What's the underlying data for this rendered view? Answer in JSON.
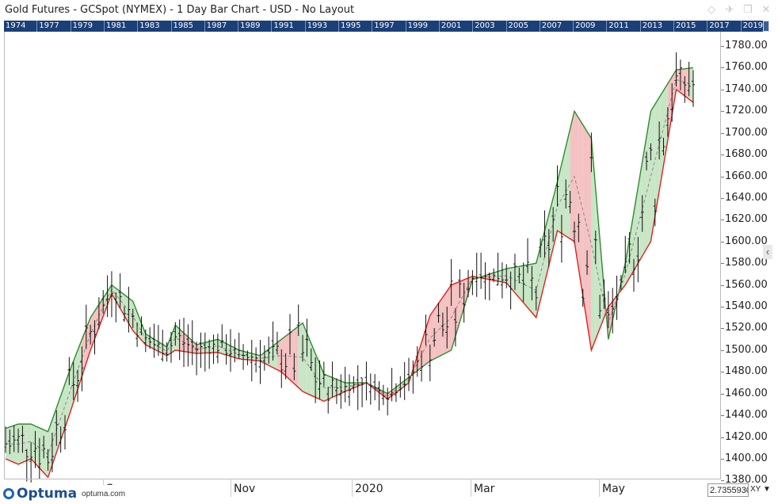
{
  "window": {
    "title": "Gold Futures - GCSpot (NYMEX) - 1 Day Bar Chart - USD - No Layout",
    "icons": [
      "diamond-icon",
      "pin-icon",
      "restore-icon",
      "close-icon"
    ]
  },
  "timeline": {
    "years": [
      "1974",
      "1977",
      "1979",
      "1981",
      "1983",
      "1985",
      "1987",
      "1989",
      "1991",
      "1993",
      "1995",
      "1997",
      "1999",
      "2001",
      "2003",
      "2005",
      "2007",
      "2009",
      "2011",
      "2013",
      "2015",
      "2017",
      "2019"
    ]
  },
  "branding": {
    "name": "Optuma",
    "url": "optuma.com"
  },
  "cursor_readout": {
    "value": "2.7355930",
    "xy_label": "XY",
    "arrow": "▼"
  },
  "side_toggle": "‹",
  "colors": {
    "bull_fill": "#c8e6c6",
    "bull_line": "#2e8b2e",
    "bear_fill": "#f4c2c2",
    "bear_line": "#e0201e",
    "bars": "#111111",
    "timeline_bg": "#1b3f78"
  },
  "chart_data": {
    "type": "ohlc_bar",
    "symbol": "GCSpot (NYMEX)",
    "interval": "1 Day",
    "currency": "USD",
    "y_axis": {
      "labels": [
        "1380.00",
        "1400.00",
        "1420.00",
        "1440.00",
        "1460.00",
        "1480.00",
        "1500.00",
        "1520.00",
        "1540.00",
        "1560.00",
        "1580.00",
        "1600.00",
        "1620.00",
        "1640.00",
        "1660.00",
        "1680.00",
        "1700.00",
        "1720.00",
        "1740.00",
        "1760.00",
        "1780.00"
      ],
      "range": [
        1385,
        1790
      ]
    },
    "x_axis": {
      "labels": [
        "Sep",
        "Nov",
        "2020",
        "Mar",
        "May"
      ]
    },
    "band": {
      "upper_x": [
        0,
        3,
        6,
        10,
        15,
        20,
        25,
        30,
        33,
        38,
        40,
        45,
        50,
        55,
        60,
        65,
        70,
        75,
        80,
        85,
        90,
        95,
        100,
        105,
        110,
        118,
        125,
        130,
        134,
        138,
        142,
        146,
        152,
        158,
        162
      ],
      "upper_y": [
        1428,
        1432,
        1432,
        1425,
        1480,
        1530,
        1560,
        1545,
        1515,
        1503,
        1523,
        1505,
        1510,
        1500,
        1495,
        1510,
        1525,
        1478,
        1470,
        1470,
        1460,
        1475,
        1490,
        1500,
        1565,
        1575,
        1580,
        1655,
        1720,
        1695,
        1510,
        1580,
        1720,
        1758,
        1760
      ],
      "lower_x": [
        0,
        3,
        6,
        10,
        15,
        20,
        25,
        30,
        33,
        38,
        40,
        45,
        50,
        55,
        60,
        65,
        70,
        75,
        80,
        85,
        90,
        95,
        100,
        105,
        110,
        118,
        125,
        130,
        134,
        138,
        142,
        146,
        152,
        158,
        162
      ],
      "lower_y": [
        1400,
        1395,
        1400,
        1383,
        1440,
        1500,
        1552,
        1518,
        1505,
        1495,
        1500,
        1497,
        1498,
        1492,
        1490,
        1480,
        1462,
        1453,
        1462,
        1470,
        1455,
        1470,
        1532,
        1560,
        1568,
        1562,
        1530,
        1610,
        1600,
        1500,
        1540,
        1560,
        1600,
        1740,
        1728
      ],
      "mid_y": [
        1414,
        1413,
        1416,
        1404,
        1460,
        1515,
        1556,
        1531,
        1510,
        1499,
        1511,
        1501,
        1504,
        1496,
        1492,
        1495,
        1493,
        1465,
        1466,
        1470,
        1457,
        1472,
        1511,
        1530,
        1566,
        1568,
        1555,
        1632,
        1660,
        1597,
        1525,
        1570,
        1660,
        1749,
        1744
      ]
    }
  }
}
